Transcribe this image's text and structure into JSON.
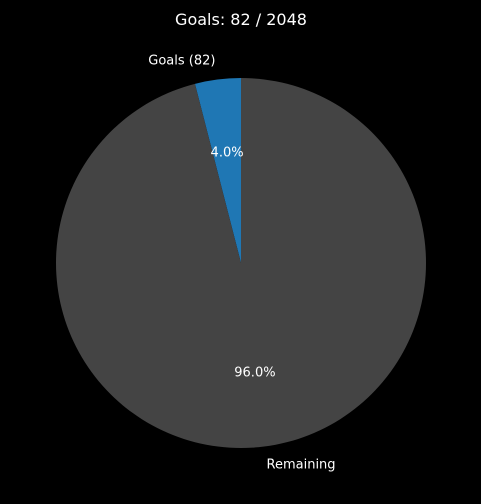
{
  "chart_data": {
    "type": "pie",
    "title": "Goals: 82 / 2048",
    "categories": [
      "Goals (82)",
      "Remaining"
    ],
    "values": [
      82,
      1966
    ],
    "percent_labels": [
      "4.0%",
      "96.0%"
    ],
    "colors": [
      "#1f77b4",
      "#444444"
    ],
    "start_angle_deg": 90,
    "direction": "counterclockwise",
    "legend": "none"
  }
}
